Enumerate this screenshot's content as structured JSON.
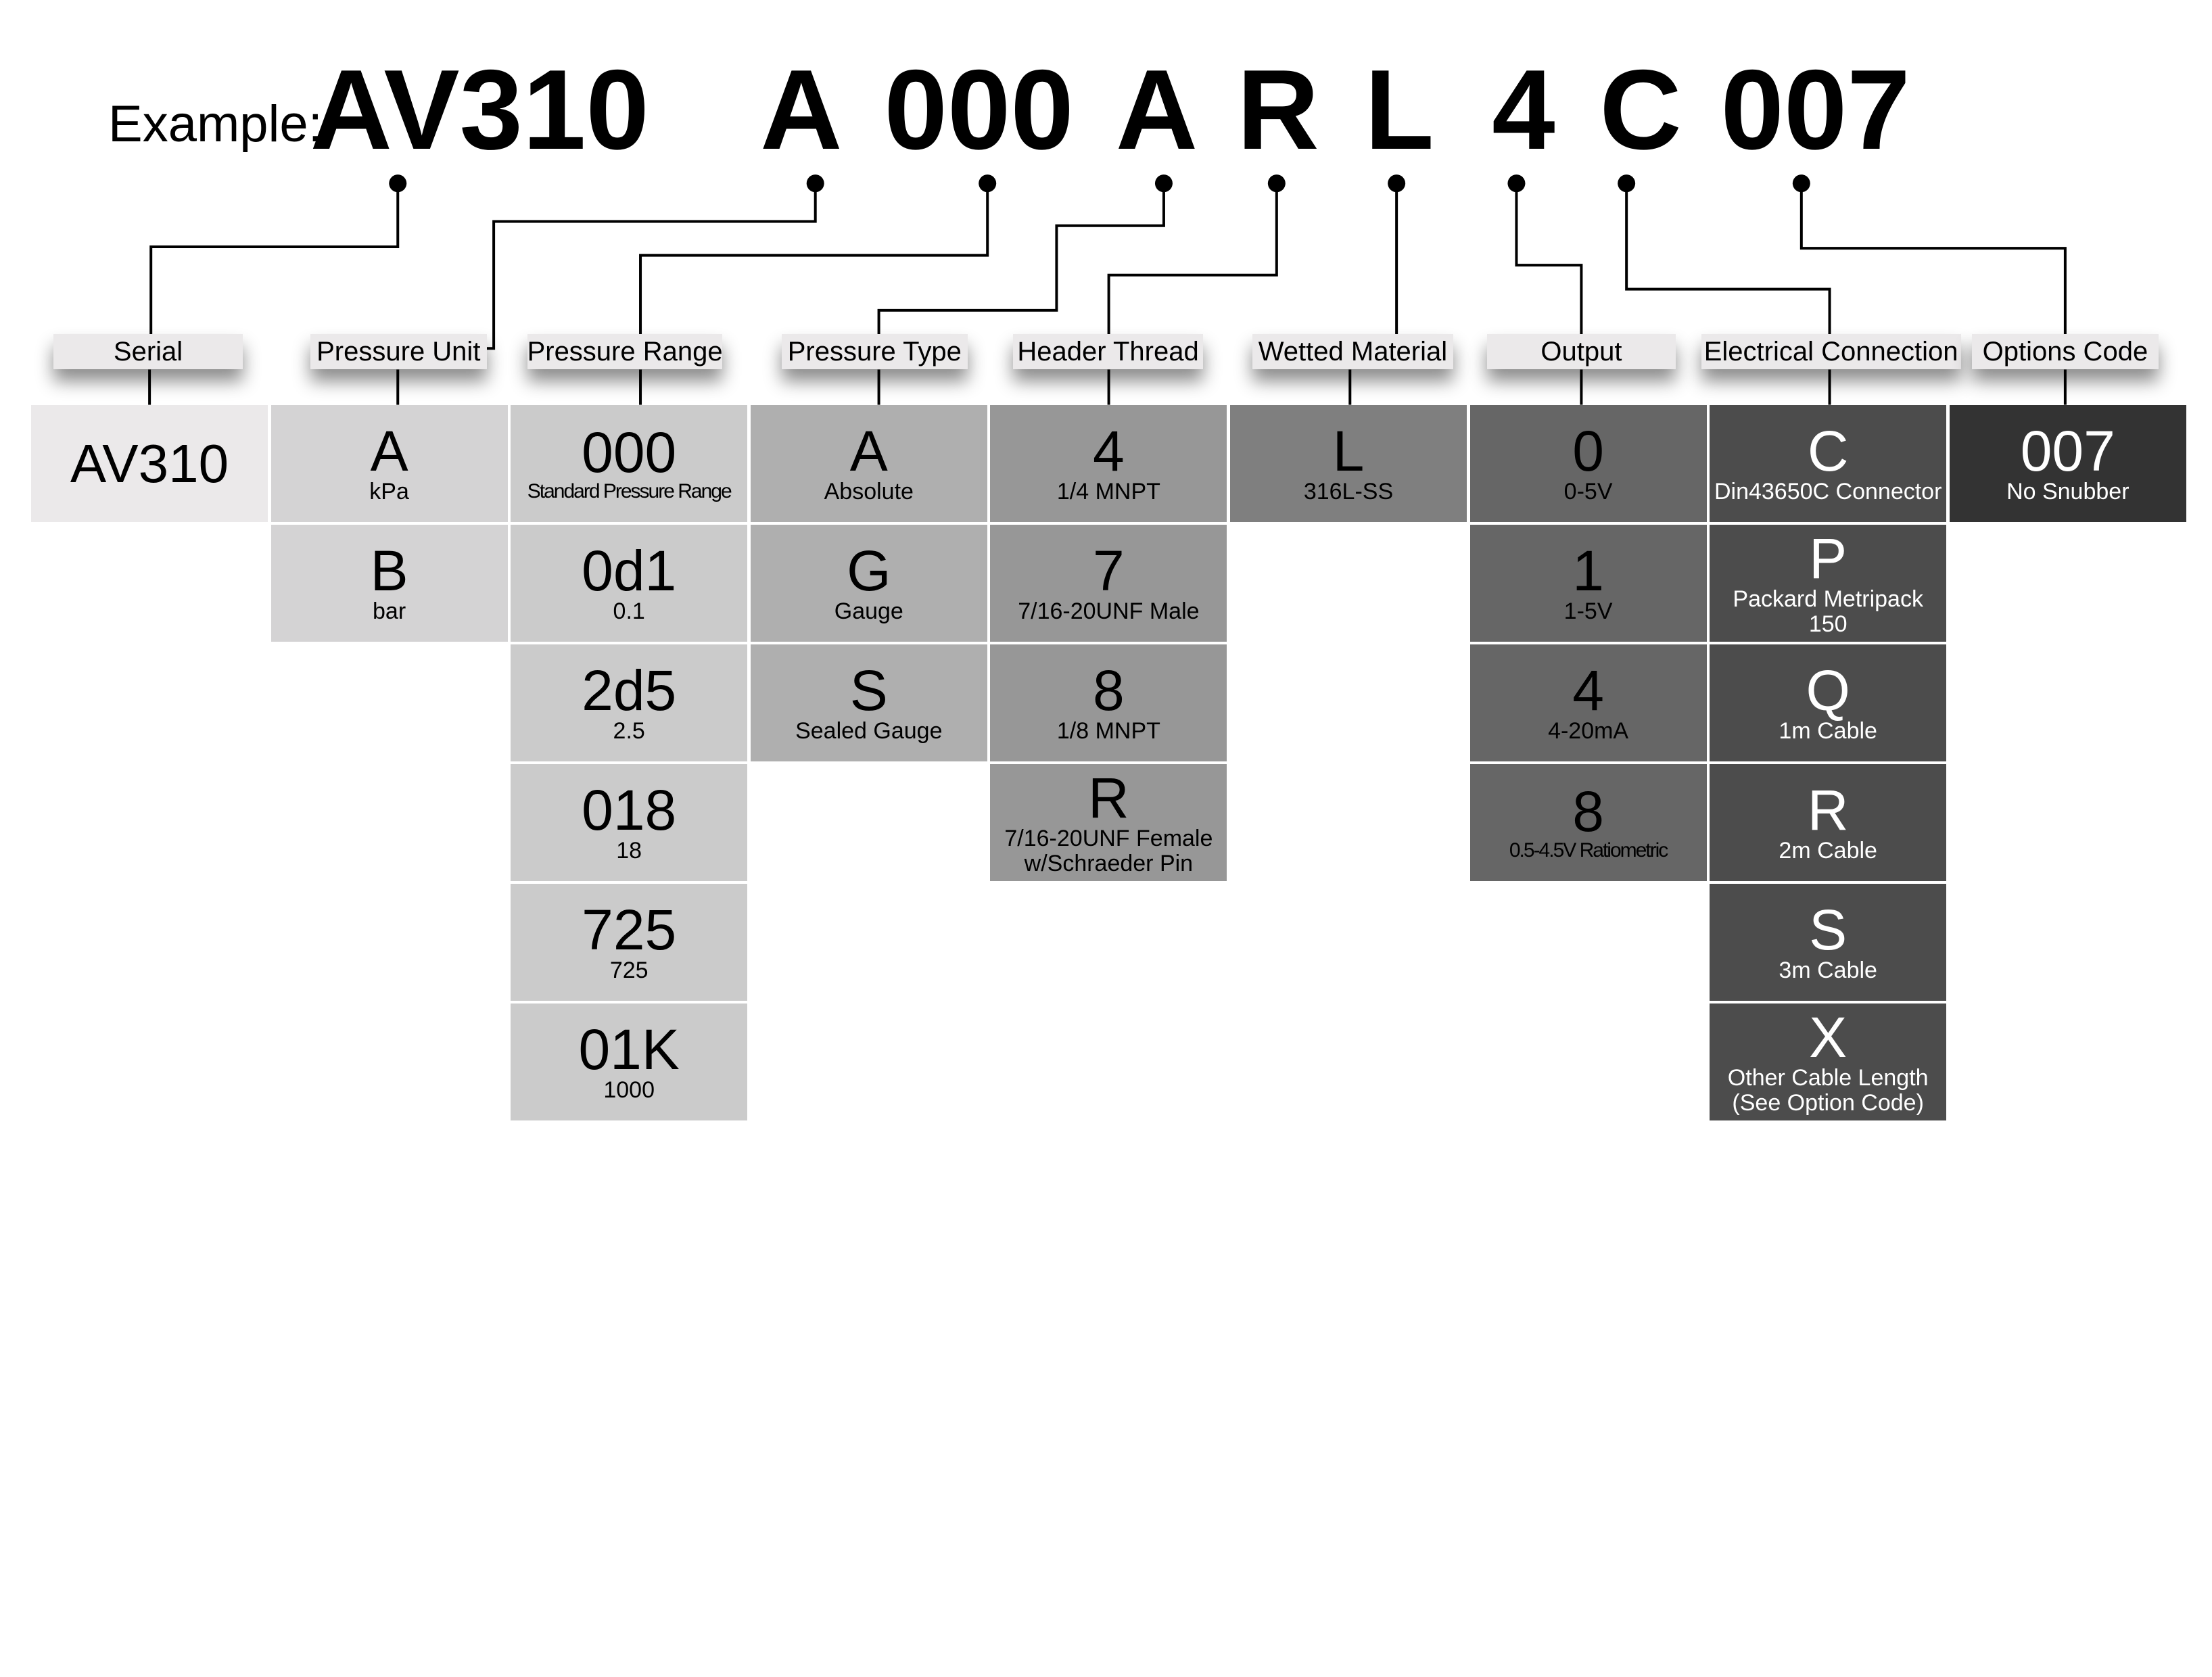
{
  "example": {
    "label": "Example:",
    "codes": [
      "AV310",
      "A",
      "000",
      "A",
      "R",
      "L",
      "4",
      "C",
      "007"
    ]
  },
  "columns": [
    {
      "label": "Serial",
      "color": "#ebe9ea",
      "text_color": "#000000",
      "options": [
        {
          "code": "AV310",
          "desc": ""
        }
      ]
    },
    {
      "label": "Pressure Unit",
      "color": "#d4d3d4",
      "text_color": "#000000",
      "options": [
        {
          "code": "A",
          "desc": "kPa"
        },
        {
          "code": "B",
          "desc": "bar"
        }
      ]
    },
    {
      "label": "Pressure Range",
      "color": "#cbcbcb",
      "text_color": "#000000",
      "options": [
        {
          "code": "000",
          "desc": "Standard Pressure Range"
        },
        {
          "code": "0d1",
          "desc": "0.1"
        },
        {
          "code": "2d5",
          "desc": "2.5"
        },
        {
          "code": "018",
          "desc": "18"
        },
        {
          "code": "725",
          "desc": "725"
        },
        {
          "code": "01K",
          "desc": "1000"
        }
      ]
    },
    {
      "label": "Pressure Type",
      "color": "#afafaf",
      "text_color": "#000000",
      "options": [
        {
          "code": "A",
          "desc": "Absolute"
        },
        {
          "code": "G",
          "desc": "Gauge"
        },
        {
          "code": "S",
          "desc": "Sealed Gauge"
        }
      ]
    },
    {
      "label": "Header Thread",
      "color": "#979797",
      "text_color": "#000000",
      "options": [
        {
          "code": "4",
          "desc": "1/4 MNPT"
        },
        {
          "code": "7",
          "desc": "7/16-20UNF Male"
        },
        {
          "code": "8",
          "desc": "1/8 MNPT"
        },
        {
          "code": "R",
          "desc": "7/16-20UNF Female\nw/Schraeder Pin"
        }
      ]
    },
    {
      "label": "Wetted Material",
      "color": "#7f7f7f",
      "text_color": "#000000",
      "options": [
        {
          "code": "L",
          "desc": "316L-SS"
        }
      ]
    },
    {
      "label": "Output",
      "color": "#666666",
      "text_color": "#000000",
      "options": [
        {
          "code": "0",
          "desc": "0-5V"
        },
        {
          "code": "1",
          "desc": "1-5V"
        },
        {
          "code": "4",
          "desc": "4-20mA"
        },
        {
          "code": "8",
          "desc": "0.5-4.5V Ratiometric"
        }
      ]
    },
    {
      "label": "Electrical Connection",
      "color": "#4c4c4c",
      "text_color": "#ffffff",
      "options": [
        {
          "code": "C",
          "desc": "Din43650C Connector"
        },
        {
          "code": "P",
          "desc": "Packard Metripack\n150"
        },
        {
          "code": "Q",
          "desc": "1m Cable"
        },
        {
          "code": "R",
          "desc": "2m Cable"
        },
        {
          "code": "S",
          "desc": "3m Cable"
        },
        {
          "code": "X",
          "desc": "Other Cable Length\n(See Option Code)"
        }
      ]
    },
    {
      "label": "Options Code",
      "color": "#333333",
      "text_color": "#ffffff",
      "options": [
        {
          "code": "007",
          "desc": "No Snubber"
        }
      ]
    }
  ]
}
